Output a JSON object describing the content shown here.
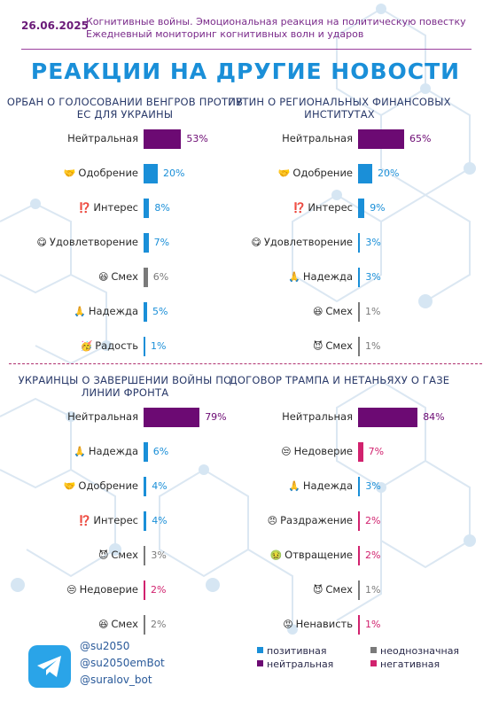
{
  "header": {
    "date": "26.06.2025",
    "line1": "Когнитивные войны. Эмоциональная реакция на политическую повестку",
    "line2": "Ежедневный мониторинг когнитивных волн и ударов"
  },
  "title": "РЕАКЦИИ НА ДРУГИЕ НОВОСТИ",
  "colors": {
    "positive": "#1a8fd8",
    "neutral": "#6c0a73",
    "ambiguous": "#7a7a7a",
    "negative": "#d1226e"
  },
  "chart_data": [
    {
      "type": "bar",
      "title": "ОРБАН О ГОЛОСОВАНИИ ВЕНГРОВ ПРОТИВ ЕС ДЛЯ УКРАИНЫ",
      "categories": [
        "Нейтральная",
        "Одобрение",
        "Интерес",
        "Удовлетворение",
        "Смех",
        "Надежда",
        "Радость"
      ],
      "icons": [
        "",
        "🤝",
        "⁉️",
        "😋",
        "😆",
        "🙏",
        "🥳"
      ],
      "values": [
        53,
        20,
        8,
        7,
        6,
        5,
        1
      ],
      "labels": [
        "53%",
        "20%",
        "8%",
        "7%",
        "6%",
        "5%",
        "1%"
      ],
      "groups": [
        "neutral",
        "positive",
        "positive",
        "positive",
        "ambiguous",
        "positive",
        "positive"
      ]
    },
    {
      "type": "bar",
      "title": "ПУТИН О РЕГИОНАЛЬНЫХ ФИНАНСОВЫХ ИНСТИТУТАХ",
      "categories": [
        "Нейтральная",
        "Одобрение",
        "Интерес",
        "Удовлетворение",
        "Надежда",
        "Смех",
        "Смех"
      ],
      "icons": [
        "",
        "🤝",
        "⁉️",
        "😋",
        "🙏",
        "😆",
        "😈"
      ],
      "values": [
        65,
        20,
        9,
        3,
        3,
        1,
        1
      ],
      "labels": [
        "65%",
        "20%",
        "9%",
        "3%",
        "3%",
        "1%",
        "1%"
      ],
      "groups": [
        "neutral",
        "positive",
        "positive",
        "positive",
        "positive",
        "ambiguous",
        "ambiguous"
      ]
    },
    {
      "type": "bar",
      "title": "УКРАИНЦЫ О ЗАВЕРШЕНИИ ВОЙНЫ ПО ЛИНИИ ФРОНТА",
      "categories": [
        "Нейтральная",
        "Надежда",
        "Одобрение",
        "Интерес",
        "Смех",
        "Недоверие",
        "Смех"
      ],
      "icons": [
        "",
        "🙏",
        "🤝",
        "⁉️",
        "😈",
        "😒",
        "😆"
      ],
      "values": [
        79,
        6,
        4,
        4,
        3,
        2,
        2
      ],
      "labels": [
        "79%",
        "6%",
        "4%",
        "4%",
        "3%",
        "2%",
        "2%"
      ],
      "groups": [
        "neutral",
        "positive",
        "positive",
        "positive",
        "ambiguous",
        "negative",
        "ambiguous"
      ]
    },
    {
      "type": "bar",
      "title": "ДОГОВОР ТРАМПА И НЕТАНЬЯХУ О ГАЗЕ",
      "categories": [
        "Нейтральная",
        "Недоверие",
        "Надежда",
        "Раздражение",
        "Отвращение",
        "Смех",
        "Ненависть"
      ],
      "icons": [
        "",
        "😒",
        "🙏",
        "😠",
        "🤢",
        "😈",
        "😡"
      ],
      "values": [
        84,
        7,
        3,
        2,
        2,
        1,
        1
      ],
      "labels": [
        "84%",
        "7%",
        "3%",
        "2%",
        "2%",
        "1%",
        "1%"
      ],
      "groups": [
        "neutral",
        "negative",
        "positive",
        "negative",
        "negative",
        "ambiguous",
        "negative"
      ]
    }
  ],
  "footer": {
    "handles": [
      "@su2050",
      "@su2050emBot",
      "@suralov_bot"
    ],
    "legend": [
      {
        "key": "positive",
        "label": "позитивная"
      },
      {
        "key": "ambiguous",
        "label": "неоднозначная"
      },
      {
        "key": "neutral",
        "label": "нейтральная"
      },
      {
        "key": "negative",
        "label": "негативная"
      }
    ]
  }
}
